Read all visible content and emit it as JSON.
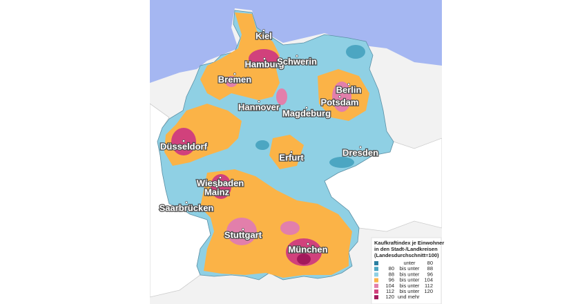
{
  "cities": [
    "Kiel",
    "Hamburg",
    "Schwerin",
    "Bremen",
    "Berlin",
    "Potsdam",
    "Hannover",
    "Magdeburg",
    "Düsseldorf",
    "Dresden",
    "Erfurt",
    "Wiesbaden",
    "Mainz",
    "Saarbrücken",
    "Stuttgart",
    "München"
  ],
  "legend": {
    "title": [
      "Kaufkraftindex je Einwohner",
      "in den Stadt-/Landkreisen",
      "(Landesdurchschnitt=100)"
    ],
    "rows": [
      {
        "color": "#2b7fa1",
        "label": "unter",
        "to": 80
      },
      {
        "color": "#4ca6c2",
        "from": 80,
        "label": "bis unter",
        "to": 88
      },
      {
        "color": "#8fd0e4",
        "from": 88,
        "label": "bis unter",
        "to": 96
      },
      {
        "color": "#fbb347",
        "from": 96,
        "label": "bis unter",
        "to": 104
      },
      {
        "color": "#e27fab",
        "from": 104,
        "label": "bis unter",
        "to": 112
      },
      {
        "color": "#d1417c",
        "from": 112,
        "label": "bis unter",
        "to": 120
      },
      {
        "color": "#a3195b",
        "from": 120,
        "label": "und mehr"
      }
    ]
  }
}
